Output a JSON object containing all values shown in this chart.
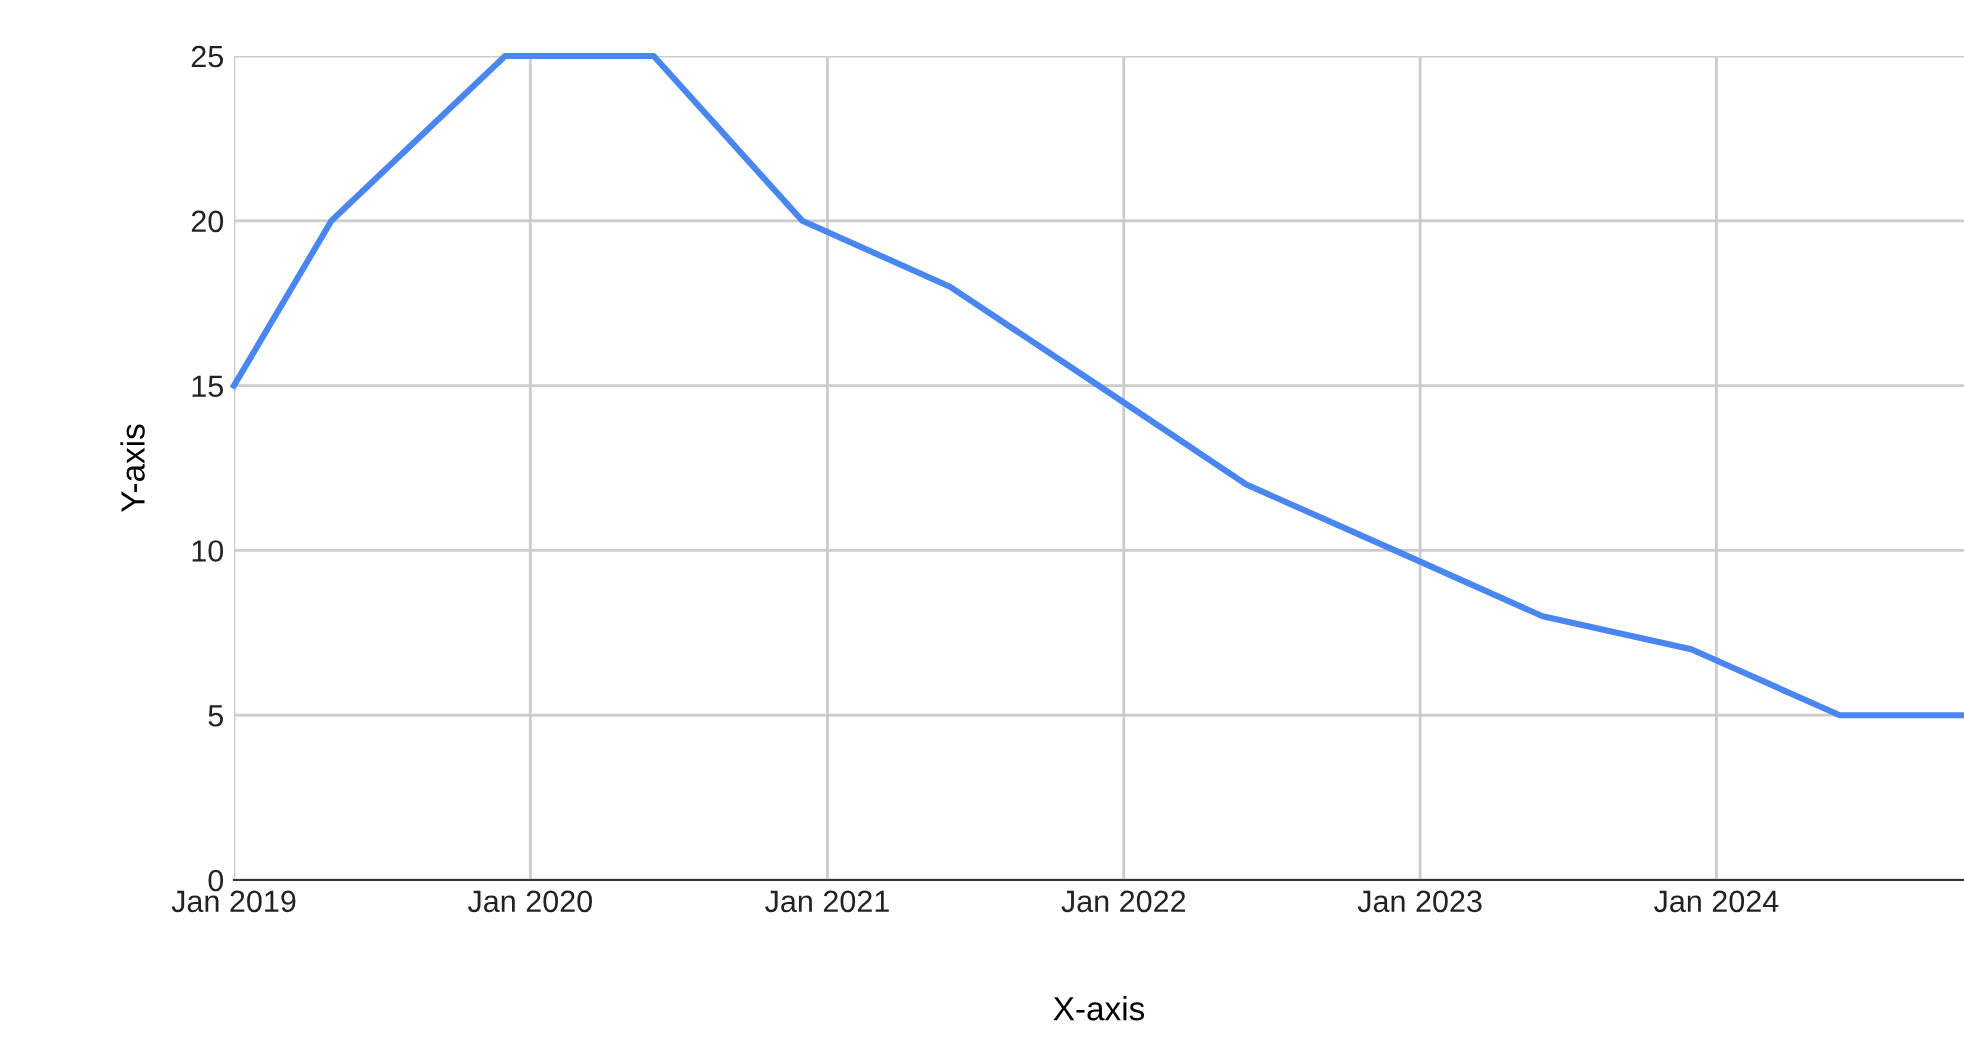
{
  "chart_data": {
    "type": "line",
    "xlabel": "X-axis",
    "ylabel": "Y-axis",
    "x": [
      "2019-01-01",
      "2019-05-01",
      "2019-12-01",
      "2020-06-01",
      "2020-12-01",
      "2021-06-01",
      "2021-12-01",
      "2022-06-01",
      "2022-12-01",
      "2023-06-01",
      "2023-12-01",
      "2024-06-01",
      "2024-11-01"
    ],
    "series": [
      {
        "color": "#4a86f0",
        "values": [
          15,
          20,
          25,
          25,
          20,
          18,
          15,
          12,
          10,
          8,
          7,
          5,
          5
        ]
      }
    ],
    "xlim": [
      "2019-01-01",
      "2024-11-01"
    ],
    "xticks": [
      {
        "value": "2019-01-01",
        "label": "Jan 2019"
      },
      {
        "value": "2020-01-01",
        "label": "Jan 2020"
      },
      {
        "value": "2021-01-01",
        "label": "Jan 2021"
      },
      {
        "value": "2022-01-01",
        "label": "Jan 2022"
      },
      {
        "value": "2023-01-01",
        "label": "Jan 2023"
      },
      {
        "value": "2024-01-01",
        "label": "Jan 2024"
      }
    ],
    "ylim": [
      0,
      25
    ],
    "yticks": [
      0,
      5,
      10,
      15,
      20,
      25
    ],
    "grid": true,
    "legend": false,
    "marker": "none",
    "line_style": "solid"
  }
}
